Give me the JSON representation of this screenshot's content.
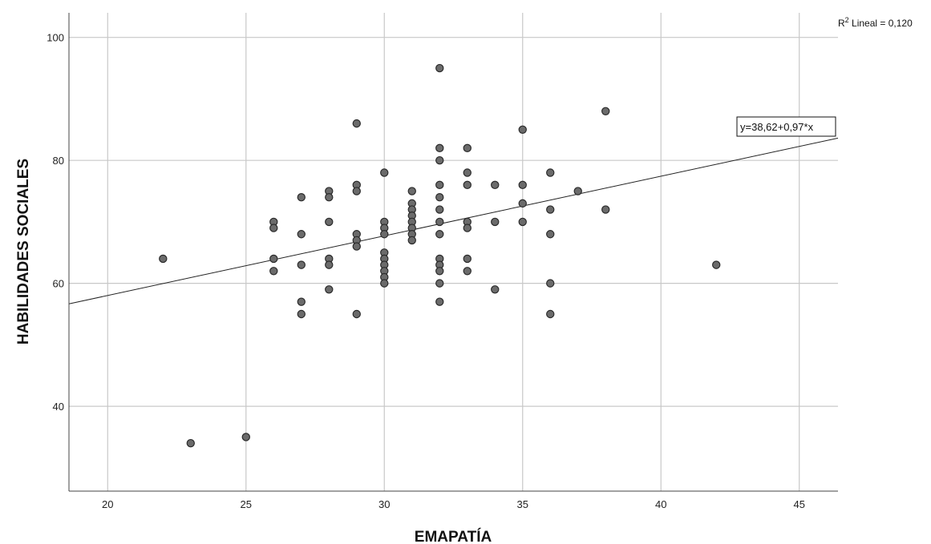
{
  "chart_data": {
    "type": "scatter",
    "title": "",
    "xlabel": "EMAPATÍA",
    "ylabel": "HABILIDADES SOCIALES",
    "xlim": [
      18.6,
      46.4
    ],
    "ylim": [
      26.2,
      104
    ],
    "x_ticks": [
      "20",
      "25",
      "30",
      "35",
      "40",
      "45"
    ],
    "y_ticks": [
      "40",
      "60",
      "80",
      "100"
    ],
    "grid": true,
    "fit_line": {
      "intercept": 38.62,
      "slope": 0.97,
      "equation_label": "y=38,62+0,97*x"
    },
    "r2_label": {
      "prefix": "R",
      "superscript": "2",
      "text": " Lineal = 0,120"
    },
    "points": [
      {
        "x": 22,
        "y": 64
      },
      {
        "x": 23,
        "y": 34
      },
      {
        "x": 25,
        "y": 35
      },
      {
        "x": 26,
        "y": 70
      },
      {
        "x": 26,
        "y": 69
      },
      {
        "x": 26,
        "y": 64
      },
      {
        "x": 26,
        "y": 62
      },
      {
        "x": 27,
        "y": 74
      },
      {
        "x": 27,
        "y": 68
      },
      {
        "x": 27,
        "y": 63
      },
      {
        "x": 27,
        "y": 57
      },
      {
        "x": 27,
        "y": 55
      },
      {
        "x": 28,
        "y": 75
      },
      {
        "x": 28,
        "y": 74
      },
      {
        "x": 28,
        "y": 70
      },
      {
        "x": 28,
        "y": 64
      },
      {
        "x": 28,
        "y": 63
      },
      {
        "x": 28,
        "y": 59
      },
      {
        "x": 29,
        "y": 86
      },
      {
        "x": 29,
        "y": 76
      },
      {
        "x": 29,
        "y": 75
      },
      {
        "x": 29,
        "y": 68
      },
      {
        "x": 29,
        "y": 67
      },
      {
        "x": 29,
        "y": 66
      },
      {
        "x": 29,
        "y": 55
      },
      {
        "x": 30,
        "y": 78
      },
      {
        "x": 30,
        "y": 70
      },
      {
        "x": 30,
        "y": 69
      },
      {
        "x": 30,
        "y": 68
      },
      {
        "x": 30,
        "y": 65
      },
      {
        "x": 30,
        "y": 64
      },
      {
        "x": 30,
        "y": 63
      },
      {
        "x": 30,
        "y": 62
      },
      {
        "x": 30,
        "y": 61
      },
      {
        "x": 30,
        "y": 60
      },
      {
        "x": 31,
        "y": 75
      },
      {
        "x": 31,
        "y": 73
      },
      {
        "x": 31,
        "y": 72
      },
      {
        "x": 31,
        "y": 71
      },
      {
        "x": 31,
        "y": 70
      },
      {
        "x": 31,
        "y": 69
      },
      {
        "x": 31,
        "y": 68
      },
      {
        "x": 31,
        "y": 67
      },
      {
        "x": 32,
        "y": 95
      },
      {
        "x": 32,
        "y": 82
      },
      {
        "x": 32,
        "y": 80
      },
      {
        "x": 32,
        "y": 76
      },
      {
        "x": 32,
        "y": 74
      },
      {
        "x": 32,
        "y": 72
      },
      {
        "x": 32,
        "y": 70
      },
      {
        "x": 32,
        "y": 68
      },
      {
        "x": 32,
        "y": 64
      },
      {
        "x": 32,
        "y": 63
      },
      {
        "x": 32,
        "y": 62
      },
      {
        "x": 32,
        "y": 60
      },
      {
        "x": 32,
        "y": 57
      },
      {
        "x": 33,
        "y": 82
      },
      {
        "x": 33,
        "y": 78
      },
      {
        "x": 33,
        "y": 76
      },
      {
        "x": 33,
        "y": 70
      },
      {
        "x": 33,
        "y": 69
      },
      {
        "x": 33,
        "y": 64
      },
      {
        "x": 33,
        "y": 62
      },
      {
        "x": 34,
        "y": 76
      },
      {
        "x": 34,
        "y": 70
      },
      {
        "x": 34,
        "y": 59
      },
      {
        "x": 35,
        "y": 85
      },
      {
        "x": 35,
        "y": 76
      },
      {
        "x": 35,
        "y": 73
      },
      {
        "x": 35,
        "y": 70
      },
      {
        "x": 36,
        "y": 78
      },
      {
        "x": 36,
        "y": 72
      },
      {
        "x": 36,
        "y": 68
      },
      {
        "x": 36,
        "y": 60
      },
      {
        "x": 36,
        "y": 55
      },
      {
        "x": 37,
        "y": 75
      },
      {
        "x": 38,
        "y": 88
      },
      {
        "x": 38,
        "y": 72
      },
      {
        "x": 42,
        "y": 63
      }
    ]
  }
}
